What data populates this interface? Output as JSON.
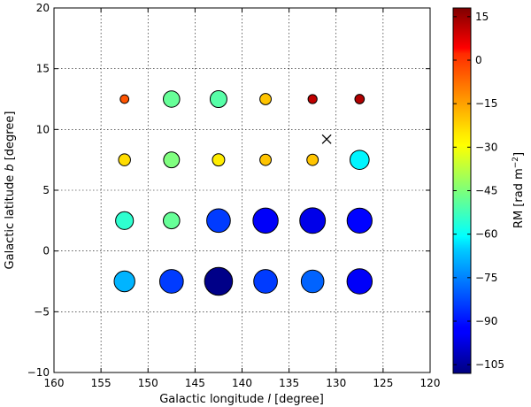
{
  "chart_data": {
    "type": "scatter",
    "xlabel_html": "Galactic longitude",
    "xlabel_sym": "l",
    "xlabel_unit": "[degree]",
    "ylabel_html": "Galactic latitude",
    "ylabel_sym": "b",
    "ylabel_unit": "[degree]",
    "colorbar_label": "RM [rad m",
    "colorbar_label_exp": "−2",
    "colorbar_label_close": "]",
    "xlim": [
      160,
      120
    ],
    "ylim": [
      -10,
      20
    ],
    "x_ticks": [
      160,
      155,
      150,
      145,
      140,
      135,
      130,
      125,
      120
    ],
    "y_ticks": [
      -10,
      -5,
      0,
      5,
      10,
      15,
      20
    ],
    "colorbar_range": [
      -108,
      18
    ],
    "colorbar_ticks": [
      "15",
      "0",
      "−15",
      "−30",
      "−45",
      "−60",
      "−75",
      "−90",
      "−105"
    ],
    "colorbar_tick_values": [
      15,
      0,
      -15,
      -30,
      -45,
      -60,
      -75,
      -90,
      -105
    ],
    "colormap": "jet",
    "grid": true,
    "marker": {
      "x": 131,
      "y": 9.2,
      "symbol": "x"
    },
    "points": [
      {
        "x": 152.5,
        "y": 12.5,
        "rm": -8
      },
      {
        "x": 147.5,
        "y": 12.5,
        "rm": -48
      },
      {
        "x": 142.5,
        "y": 12.5,
        "rm": -50
      },
      {
        "x": 137.5,
        "y": 12.5,
        "rm": -22
      },
      {
        "x": 132.5,
        "y": 12.5,
        "rm": 10
      },
      {
        "x": 127.5,
        "y": 12.5,
        "rm": 12
      },
      {
        "x": 152.5,
        "y": 7.5,
        "rm": -25
      },
      {
        "x": 147.5,
        "y": 7.5,
        "rm": -45
      },
      {
        "x": 142.5,
        "y": 7.5,
        "rm": -27
      },
      {
        "x": 137.5,
        "y": 7.5,
        "rm": -22
      },
      {
        "x": 132.5,
        "y": 7.5,
        "rm": -22
      },
      {
        "x": 127.5,
        "y": 7.5,
        "rm": -62
      },
      {
        "x": 152.5,
        "y": 2.5,
        "rm": -55
      },
      {
        "x": 147.5,
        "y": 2.5,
        "rm": -48
      },
      {
        "x": 142.5,
        "y": 2.5,
        "rm": -85
      },
      {
        "x": 137.5,
        "y": 2.5,
        "rm": -93
      },
      {
        "x": 132.5,
        "y": 2.5,
        "rm": -95
      },
      {
        "x": 127.5,
        "y": 2.5,
        "rm": -92
      },
      {
        "x": 152.5,
        "y": -2.5,
        "rm": -70
      },
      {
        "x": 147.5,
        "y": -2.5,
        "rm": -85
      },
      {
        "x": 142.5,
        "y": -2.5,
        "rm": -107
      },
      {
        "x": 137.5,
        "y": -2.5,
        "rm": -85
      },
      {
        "x": 132.5,
        "y": -2.5,
        "rm": -80
      },
      {
        "x": 127.5,
        "y": -2.5,
        "rm": -93
      }
    ]
  }
}
